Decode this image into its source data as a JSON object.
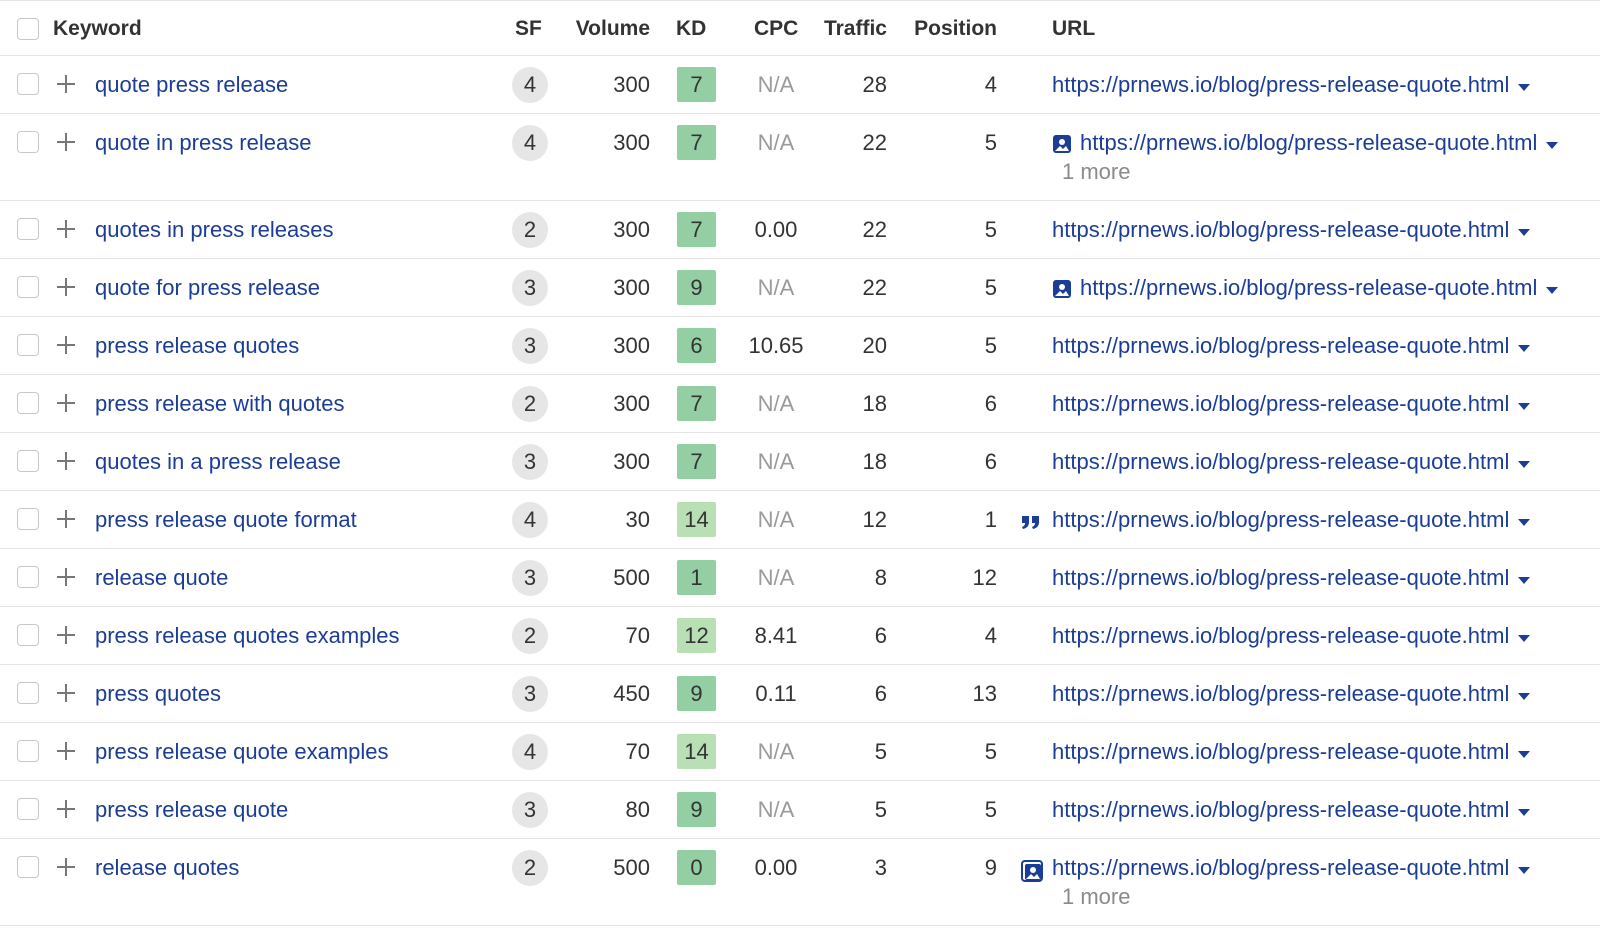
{
  "header": {
    "columns": [
      "Keyword",
      "SF",
      "Volume",
      "KD",
      "CPC",
      "Traffic",
      "Position",
      "URL"
    ]
  },
  "table": {
    "rows": [
      {
        "keyword": "quote press release",
        "sf": 4,
        "volume": 300,
        "kd": 7,
        "kd_color": "#93cfa3",
        "cpc": "N/A",
        "traffic": 28,
        "position": 4,
        "url": "https://prnews.io/blog/press-release-quote.html"
      },
      {
        "keyword": "quote in press release",
        "sf": 4,
        "volume": 300,
        "kd": 7,
        "kd_color": "#93cfa3",
        "cpc": "N/A",
        "traffic": 22,
        "position": 5,
        "url": "https://prnews.io/blog/press-release-quote.html",
        "url_icon": "image",
        "more": "1 more"
      },
      {
        "keyword": "quotes in press releases",
        "sf": 2,
        "volume": 300,
        "kd": 7,
        "kd_color": "#93cfa3",
        "cpc": "0.00",
        "traffic": 22,
        "position": 5,
        "url": "https://prnews.io/blog/press-release-quote.html"
      },
      {
        "keyword": "quote for press release",
        "sf": 3,
        "volume": 300,
        "kd": 9,
        "kd_color": "#93cfa3",
        "cpc": "N/A",
        "traffic": 22,
        "position": 5,
        "url": "https://prnews.io/blog/press-release-quote.html",
        "url_icon": "image"
      },
      {
        "keyword": "press release quotes",
        "sf": 3,
        "volume": 300,
        "kd": 6,
        "kd_color": "#93cfa3",
        "cpc": "10.65",
        "traffic": 20,
        "position": 5,
        "url": "https://prnews.io/blog/press-release-quote.html"
      },
      {
        "keyword": "press release with quotes",
        "sf": 2,
        "volume": 300,
        "kd": 7,
        "kd_color": "#93cfa3",
        "cpc": "N/A",
        "traffic": 18,
        "position": 6,
        "url": "https://prnews.io/blog/press-release-quote.html"
      },
      {
        "keyword": "quotes in a press release",
        "sf": 3,
        "volume": 300,
        "kd": 7,
        "kd_color": "#93cfa3",
        "cpc": "N/A",
        "traffic": 18,
        "position": 6,
        "url": "https://prnews.io/blog/press-release-quote.html"
      },
      {
        "keyword": "press release quote format",
        "sf": 4,
        "volume": 30,
        "kd": 14,
        "kd_color": "#b9e0b4",
        "cpc": "N/A",
        "traffic": 12,
        "position": 1,
        "url": "https://prnews.io/blog/press-release-quote.html",
        "url_icon": "quote"
      },
      {
        "keyword": "release quote",
        "sf": 3,
        "volume": 500,
        "kd": 1,
        "kd_color": "#93cfa3",
        "cpc": "N/A",
        "traffic": 8,
        "position": 12,
        "url": "https://prnews.io/blog/press-release-quote.html"
      },
      {
        "keyword": "press release quotes examples",
        "sf": 2,
        "volume": 70,
        "kd": 12,
        "kd_color": "#b9e0b4",
        "cpc": "8.41",
        "traffic": 6,
        "position": 4,
        "url": "https://prnews.io/blog/press-release-quote.html"
      },
      {
        "keyword": "press quotes",
        "sf": 3,
        "volume": 450,
        "kd": 9,
        "kd_color": "#93cfa3",
        "cpc": "0.11",
        "traffic": 6,
        "position": 13,
        "url": "https://prnews.io/blog/press-release-quote.html"
      },
      {
        "keyword": "press release quote examples",
        "sf": 4,
        "volume": 70,
        "kd": 14,
        "kd_color": "#b9e0b4",
        "cpc": "N/A",
        "traffic": 5,
        "position": 5,
        "url": "https://prnews.io/blog/press-release-quote.html"
      },
      {
        "keyword": "press release quote",
        "sf": 3,
        "volume": 80,
        "kd": 9,
        "kd_color": "#93cfa3",
        "cpc": "N/A",
        "traffic": 5,
        "position": 5,
        "url": "https://prnews.io/blog/press-release-quote.html"
      },
      {
        "keyword": "release quotes",
        "sf": 2,
        "volume": 500,
        "kd": 0,
        "kd_color": "#93cfa3",
        "cpc": "0.00",
        "traffic": 3,
        "position": 9,
        "url": "https://prnews.io/blog/press-release-quote.html",
        "url_icon": "image-framed",
        "more": "1 more"
      }
    ]
  }
}
